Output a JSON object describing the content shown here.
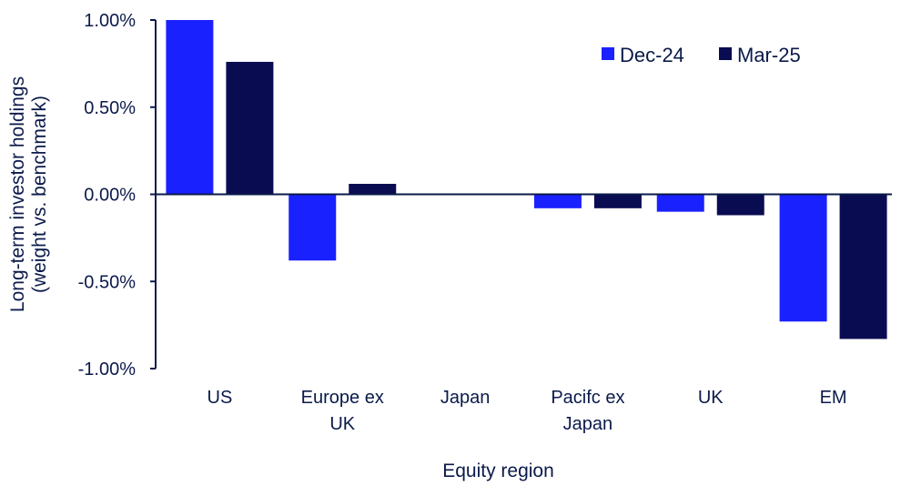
{
  "chart_data": {
    "type": "bar",
    "title": "",
    "xlabel": "Equity region",
    "ylabel_lines": [
      "Long-term investor holdings",
      "(weight vs. benchmark)"
    ],
    "ylim": [
      -1.0,
      1.0
    ],
    "yticks": [
      1.0,
      0.5,
      0.0,
      -0.5,
      -1.0
    ],
    "ytick_labels": [
      "1.00%",
      "0.50%",
      "0.00%",
      "-0.50%",
      "-1.00%"
    ],
    "categories": [
      [
        "US"
      ],
      [
        "Europe ex",
        "UK"
      ],
      [
        "Japan"
      ],
      [
        "Pacifc ex",
        "Japan"
      ],
      [
        "UK"
      ],
      [
        "EM"
      ]
    ],
    "series": [
      {
        "name": "Dec-24",
        "color": "#1a21ff",
        "values": [
          1.0,
          -0.38,
          0.0,
          -0.08,
          -0.1,
          -0.73
        ]
      },
      {
        "name": "Mar-25",
        "color": "#0a0c52",
        "values": [
          0.76,
          0.06,
          0.0,
          -0.08,
          -0.12,
          -0.83
        ]
      }
    ],
    "legend_position": "top-right",
    "grid": false
  }
}
